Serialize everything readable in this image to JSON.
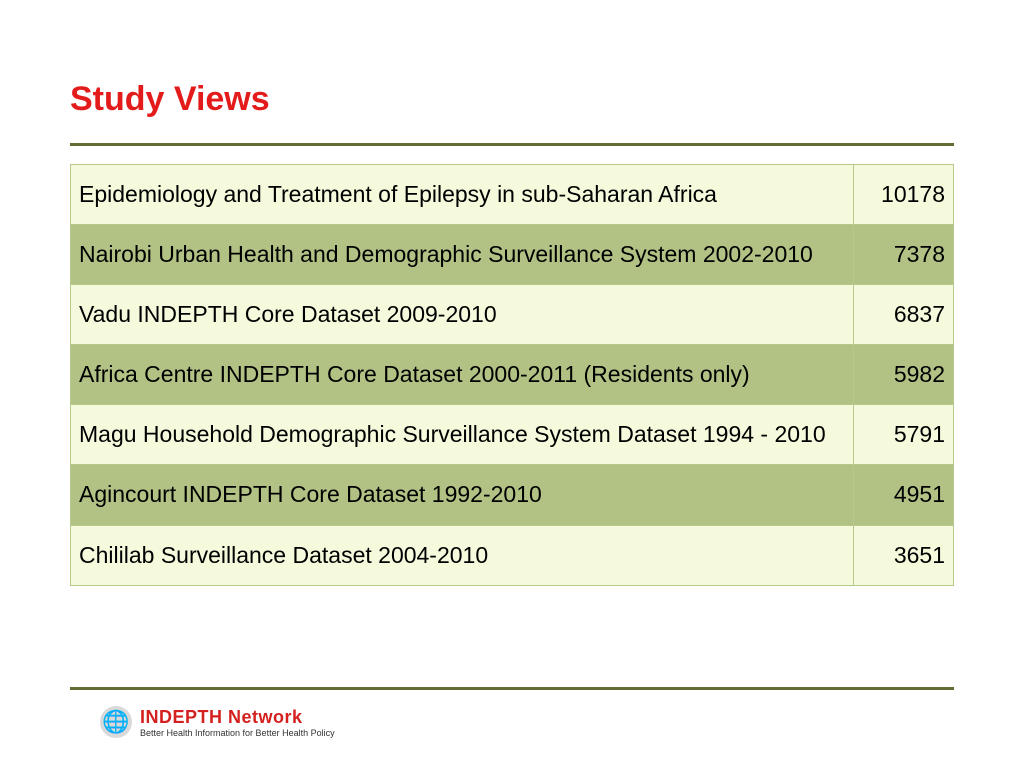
{
  "title": {
    "text": "Study Views",
    "color": "#e31b1b",
    "fontsize": 34,
    "rule_color": "#656c2f"
  },
  "table": {
    "border_color": "#b7c88b",
    "row_odd_bg": "#f5fadc",
    "row_even_bg": "#b1c284",
    "text_color": "#000000",
    "fontsize": 23,
    "rows": [
      {
        "label": "Epidemiology and Treatment of Epilepsy in sub-Saharan Africa",
        "value": "10178"
      },
      {
        "label": "Nairobi Urban Health and Demographic Surveillance System 2002-2010",
        "value": "7378"
      },
      {
        "label": "Vadu INDEPTH Core Dataset 2009-2010",
        "value": "6837"
      },
      {
        "label": "Africa Centre INDEPTH Core Dataset 2000-2011 (Residents only)",
        "value": "5982"
      },
      {
        "label": "Magu Household Demographic Surveillance System Dataset 1994 - 2010",
        "value": "5791"
      },
      {
        "label": "Agincourt INDEPTH Core Dataset 1992-2010",
        "value": "4951"
      },
      {
        "label": "Chililab Surveillance Dataset 2004-2010",
        "value": "3651"
      }
    ]
  },
  "footer": {
    "rule_color": "#656c2f",
    "brand_name": "INDEPTH Network",
    "brand_color": "#d4201f",
    "tagline": "Better Health Information for Better Health Policy",
    "globe_bg": "#d9d9d9",
    "globe_glyph": "🌐"
  }
}
